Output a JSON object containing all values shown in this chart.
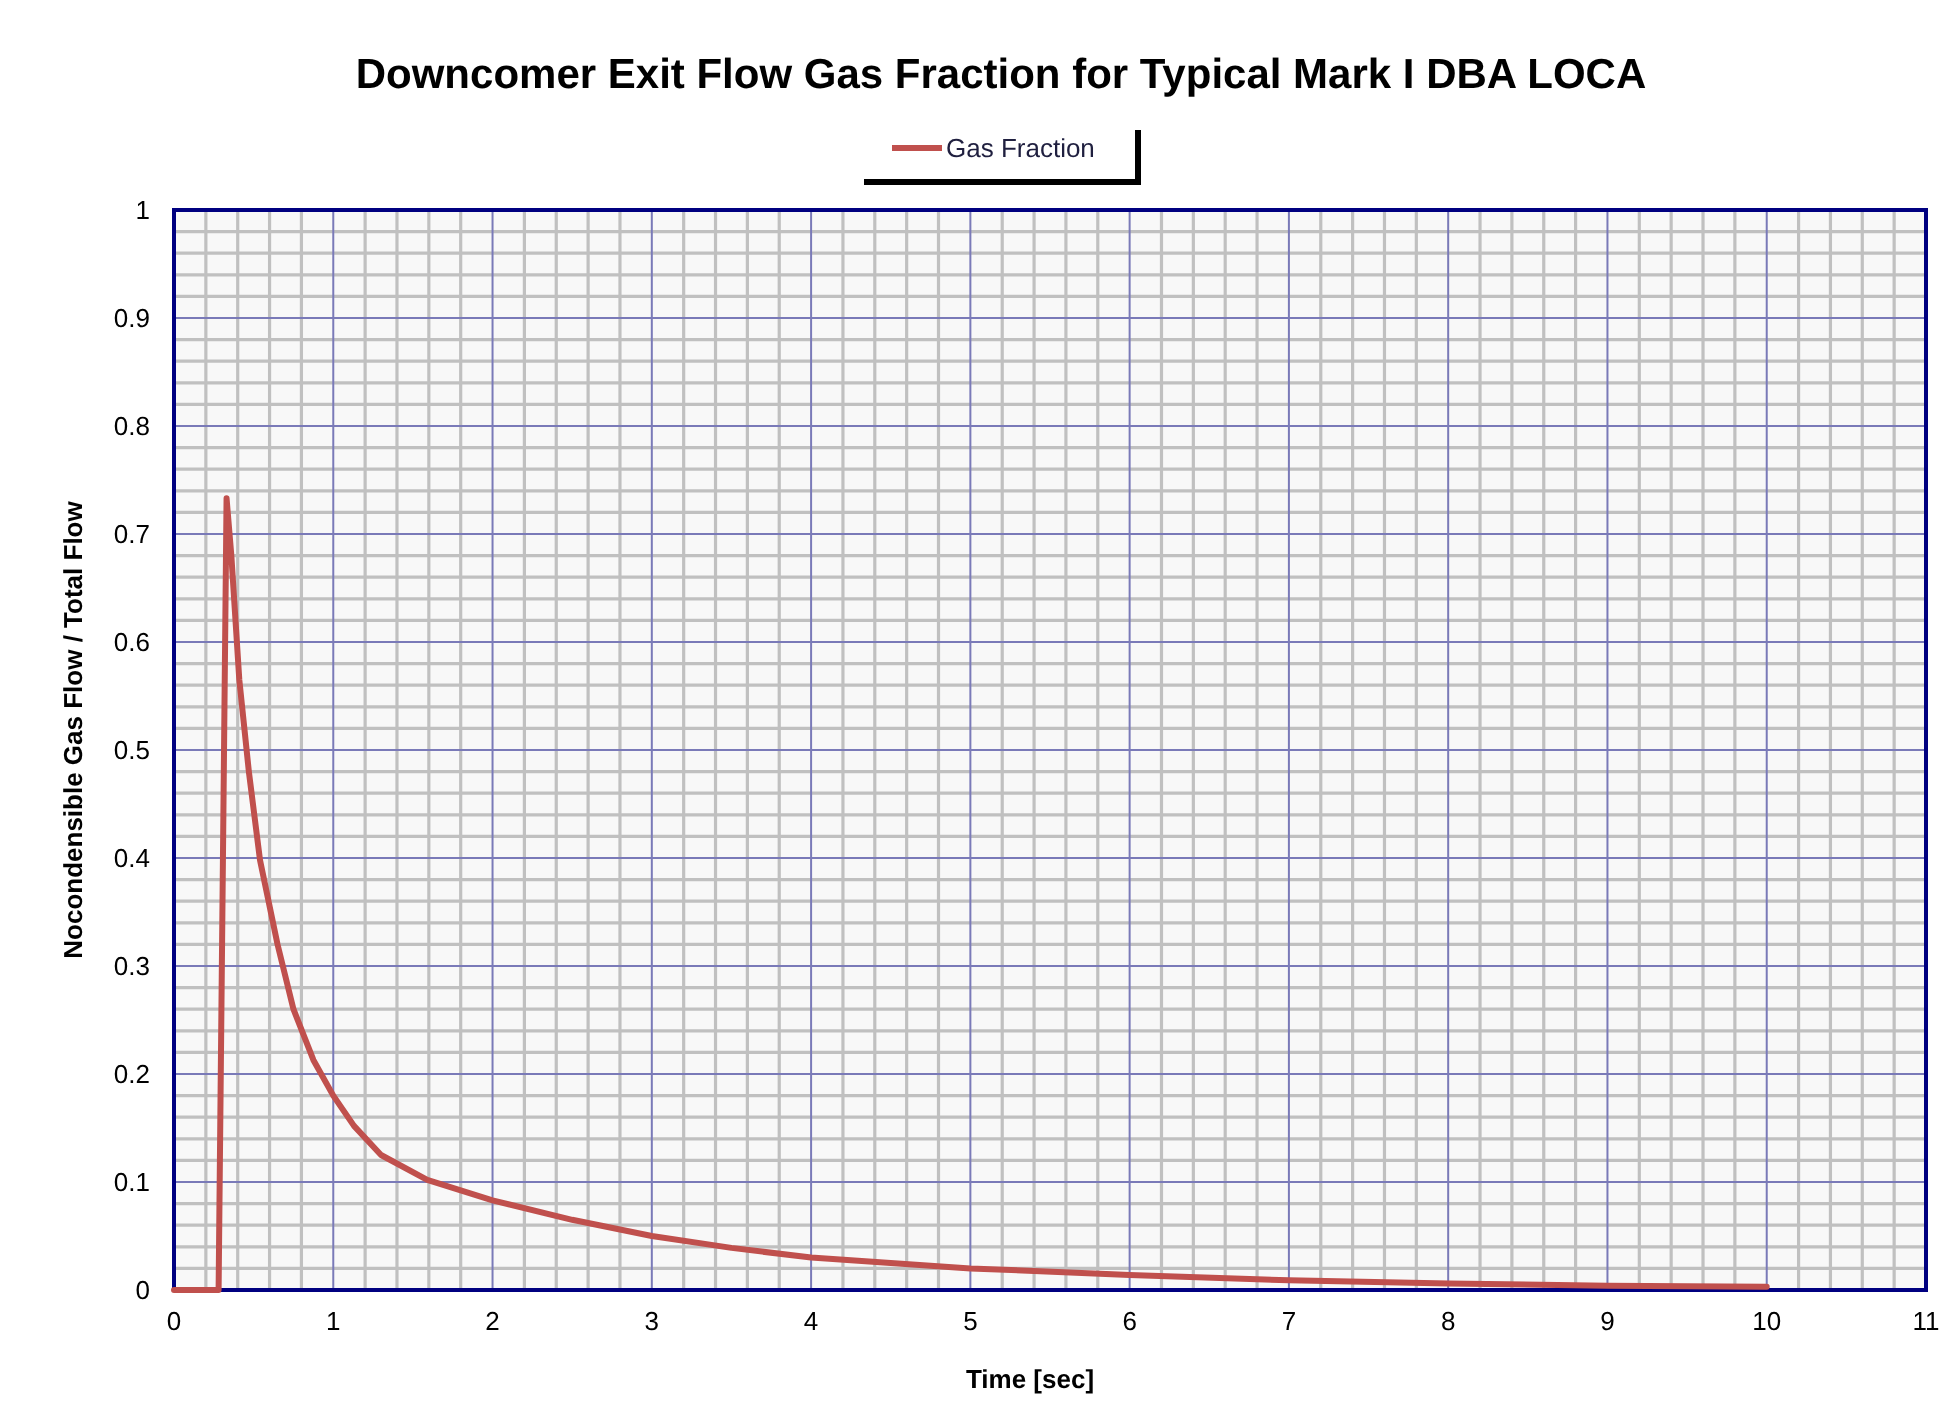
{
  "chart_data": {
    "type": "line",
    "title": "Downcomer Exit Flow Gas Fraction for Typical Mark I DBA LOCA",
    "xlabel": "Time [sec]",
    "ylabel": "Nocondensible Gas Flow / Total Flow",
    "xlim": [
      0,
      11
    ],
    "ylim": [
      0,
      1
    ],
    "xticks": [
      0,
      1,
      2,
      3,
      4,
      5,
      6,
      7,
      8,
      9,
      10,
      11
    ],
    "yticks": [
      0,
      0.1,
      0.2,
      0.3,
      0.4,
      0.5,
      0.6,
      0.7,
      0.8,
      0.9,
      1
    ],
    "grid": true,
    "legend": "top",
    "marker": "none",
    "line_style": "solid",
    "x": [
      0,
      0.28,
      0.33,
      0.36,
      0.41,
      0.47,
      0.54,
      0.65,
      0.75,
      0.875,
      1,
      1.13,
      1.3,
      1.59,
      2,
      2.5,
      3,
      3.5,
      4,
      5,
      6,
      7,
      8,
      9,
      10
    ],
    "series": [
      {
        "name": "Gas Fraction",
        "color": "#c0504d",
        "values": [
          0,
          0,
          0.733,
          0.68,
          0.565,
          0.48,
          0.398,
          0.32,
          0.26,
          0.213,
          0.18,
          0.152,
          0.125,
          0.102,
          0.083,
          0.065,
          0.05,
          0.039,
          0.03,
          0.02,
          0.014,
          0.009,
          0.006,
          0.004,
          0.003
        ]
      }
    ]
  }
}
